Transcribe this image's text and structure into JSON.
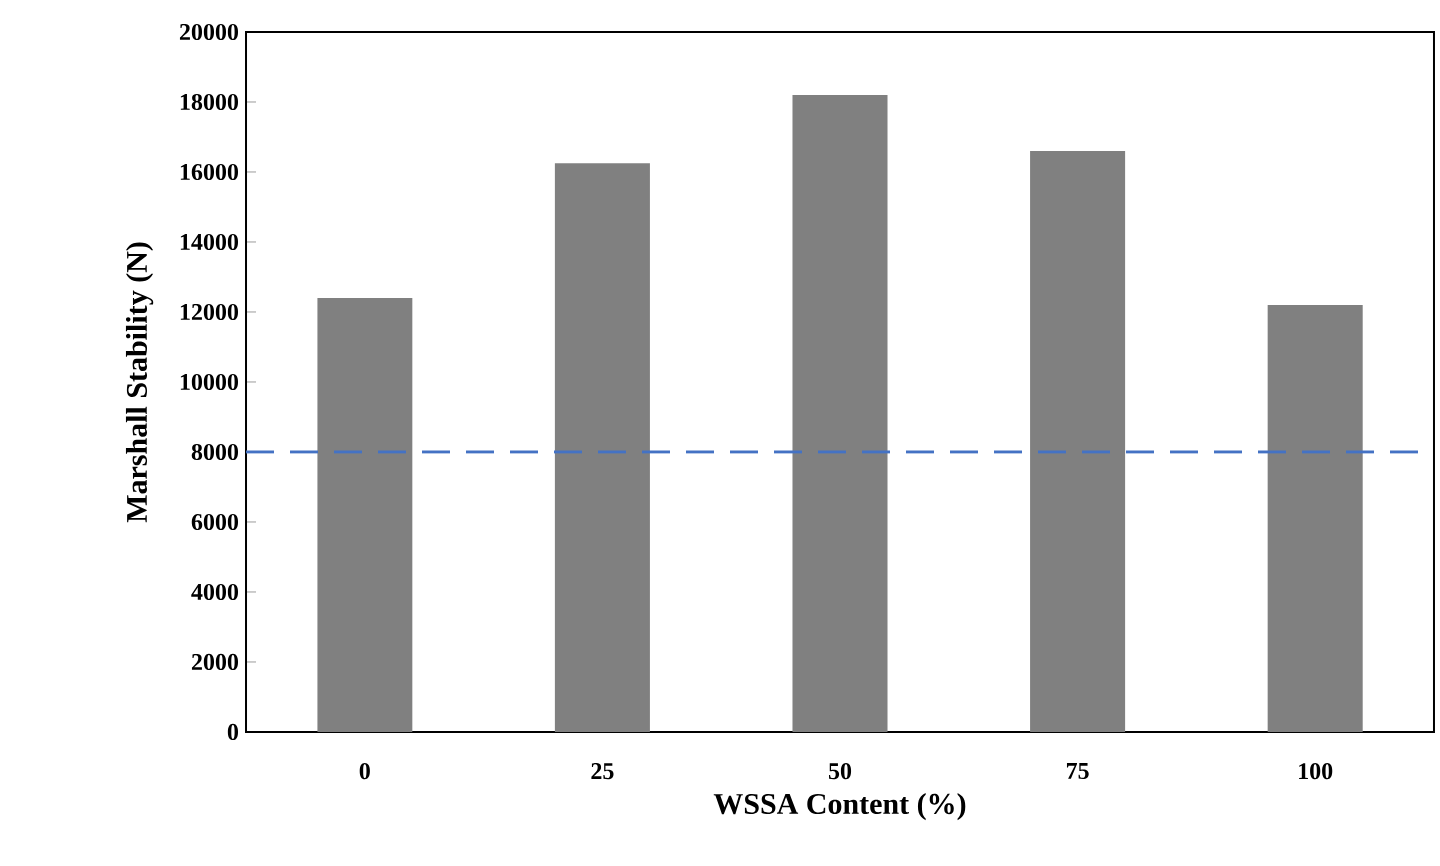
{
  "chart_data": {
    "type": "bar",
    "xlabel": "WSSA Content (%)",
    "ylabel": "Marshall Stability  (N)",
    "categories": [
      "0",
      "25",
      "50",
      "75",
      "100"
    ],
    "values": [
      12400,
      16250,
      18200,
      16600,
      12200
    ],
    "color": "#808080",
    "ylim": [
      0,
      20000
    ],
    "yticks": [
      0,
      2000,
      4000,
      6000,
      8000,
      10000,
      12000,
      14000,
      16000,
      18000,
      20000
    ],
    "ref_lines": [
      {
        "axis": "y",
        "value": 8000,
        "color": "#4472c4",
        "line_style": "dashed"
      }
    ],
    "grid": false
  }
}
